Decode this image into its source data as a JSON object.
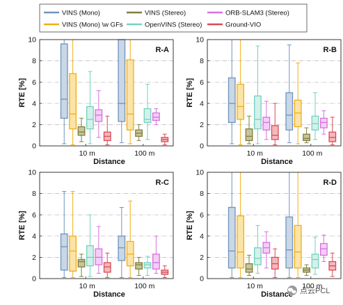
{
  "chart_data": [
    {
      "type": "box",
      "title": "R-A",
      "xlabel": "Distance",
      "ylabel": "RTE [%]",
      "ylim": [
        0,
        10
      ],
      "yticks": [
        "0",
        "2",
        "4",
        "6",
        "8",
        "10"
      ],
      "categories": [
        "10 m",
        "100 m"
      ],
      "grid": "horizontal dashed",
      "series": [
        {
          "name": "VINS (Mono)",
          "boxes": [
            {
              "min": 0.2,
              "q1": 2.6,
              "median": 4.4,
              "q3": 9.6,
              "max": 10.0
            },
            {
              "min": 0.3,
              "q1": 2.3,
              "median": 4.0,
              "q3": 10.0,
              "max": 10.0
            }
          ]
        },
        {
          "name": "VINS (Mono) \\w GFs",
          "boxes": [
            {
              "min": 0.1,
              "q1": 1.6,
              "median": 3.0,
              "q3": 6.8,
              "max": 10.0
            },
            {
              "min": 0.2,
              "q1": 1.5,
              "median": 3.0,
              "q3": 8.1,
              "max": 10.0
            }
          ]
        },
        {
          "name": "VINS (Stereo)",
          "boxes": [
            {
              "min": 0.4,
              "q1": 1.0,
              "median": 1.3,
              "q3": 1.8,
              "max": 2.6
            },
            {
              "min": 0.5,
              "q1": 0.9,
              "median": 1.2,
              "q3": 1.5,
              "max": 2.0
            }
          ]
        },
        {
          "name": "OpenVINS (Stereo)",
          "boxes": [
            {
              "min": 0.2,
              "q1": 1.6,
              "median": 2.5,
              "q3": 3.7,
              "max": 7.0
            },
            {
              "min": 0.6,
              "q1": 2.2,
              "median": 2.5,
              "q3": 3.5,
              "max": 5.8
            }
          ]
        },
        {
          "name": "ORB-SLAM3 (Stereo)",
          "boxes": [
            {
              "min": 0.8,
              "q1": 2.3,
              "median": 2.9,
              "q3": 3.4,
              "max": 5.2
            },
            {
              "min": 2.0,
              "q1": 2.4,
              "median": 2.7,
              "q3": 3.1,
              "max": 3.5
            }
          ]
        },
        {
          "name": "Ground-VIO",
          "boxes": [
            {
              "min": 0.1,
              "q1": 0.5,
              "median": 0.9,
              "q3": 1.3,
              "max": 2.8
            },
            {
              "min": 0.1,
              "q1": 0.4,
              "median": 0.6,
              "q3": 0.8,
              "max": 1.1
            }
          ]
        }
      ]
    },
    {
      "type": "box",
      "title": "R-B",
      "xlabel": "Distance",
      "ylabel": "RTE [%]",
      "ylim": [
        0,
        10
      ],
      "yticks": [
        "0",
        "2",
        "4",
        "6",
        "8",
        "10"
      ],
      "categories": [
        "10 m",
        "100 m"
      ],
      "grid": "horizontal dashed",
      "series": [
        {
          "name": "VINS (Mono)",
          "boxes": [
            {
              "min": 0.2,
              "q1": 2.2,
              "median": 4.0,
              "q3": 6.4,
              "max": 10.0
            },
            {
              "min": 0.3,
              "q1": 1.5,
              "median": 2.9,
              "q3": 5.0,
              "max": 9.5
            }
          ]
        },
        {
          "name": "VINS (Mono) \\w GFs",
          "boxes": [
            {
              "min": 0.1,
              "q1": 2.5,
              "median": 3.7,
              "q3": 5.8,
              "max": 10.0
            },
            {
              "min": 0.2,
              "q1": 1.8,
              "median": 3.1,
              "q3": 4.3,
              "max": 7.8
            }
          ]
        },
        {
          "name": "VINS (Stereo)",
          "boxes": [
            {
              "min": 0.2,
              "q1": 0.5,
              "median": 0.9,
              "q3": 1.6,
              "max": 2.8
            },
            {
              "min": 0.3,
              "q1": 0.5,
              "median": 0.7,
              "q3": 1.1,
              "max": 1.7
            }
          ]
        },
        {
          "name": "OpenVINS (Stereo)",
          "boxes": [
            {
              "min": 0.2,
              "q1": 1.6,
              "median": 2.5,
              "q3": 4.7,
              "max": 9.4
            },
            {
              "min": 0.6,
              "q1": 1.5,
              "median": 2.1,
              "q3": 2.8,
              "max": 5.0
            }
          ]
        },
        {
          "name": "ORB-SLAM3 (Stereo)",
          "boxes": [
            {
              "min": 0.6,
              "q1": 1.5,
              "median": 2.2,
              "q3": 2.7,
              "max": 4.2
            },
            {
              "min": 1.1,
              "q1": 1.7,
              "median": 2.2,
              "q3": 2.6,
              "max": 3.3
            }
          ]
        },
        {
          "name": "Ground-VIO",
          "boxes": [
            {
              "min": 0.1,
              "q1": 0.6,
              "median": 1.0,
              "q3": 1.9,
              "max": 4.0
            },
            {
              "min": 0.1,
              "q1": 0.4,
              "median": 0.8,
              "q3": 1.3,
              "max": 2.7
            }
          ]
        }
      ]
    },
    {
      "type": "box",
      "title": "R-C",
      "xlabel": "Distance",
      "ylabel": "RTE [%]",
      "ylim": [
        0,
        10
      ],
      "yticks": [
        "0",
        "2",
        "4",
        "6",
        "8",
        "10"
      ],
      "categories": [
        "10 m",
        "100 m"
      ],
      "grid": "horizontal dashed",
      "series": [
        {
          "name": "VINS (Mono)",
          "boxes": [
            {
              "min": 0.1,
              "q1": 0.8,
              "median": 3.0,
              "q3": 4.2,
              "max": 8.2
            },
            {
              "min": 0.1,
              "q1": 1.7,
              "median": 2.9,
              "q3": 4.0,
              "max": 6.7
            }
          ]
        },
        {
          "name": "VINS (Mono) \\w GFs",
          "boxes": [
            {
              "min": 0.1,
              "q1": 0.7,
              "median": 2.6,
              "q3": 4.0,
              "max": 8.2
            },
            {
              "min": 0.1,
              "q1": 1.2,
              "median": 2.3,
              "q3": 3.5,
              "max": 7.3
            }
          ]
        },
        {
          "name": "VINS (Stereo)",
          "boxes": [
            {
              "min": 0.2,
              "q1": 1.1,
              "median": 1.6,
              "q3": 1.8,
              "max": 2.3
            },
            {
              "min": 0.3,
              "q1": 0.9,
              "median": 1.3,
              "q3": 1.5,
              "max": 2.0
            }
          ]
        },
        {
          "name": "OpenVINS (Stereo)",
          "boxes": [
            {
              "min": 0.2,
              "q1": 1.2,
              "median": 2.0,
              "q3": 3.1,
              "max": 6.0
            },
            {
              "min": 0.3,
              "q1": 1.0,
              "median": 1.3,
              "q3": 1.5,
              "max": 2.1
            }
          ]
        },
        {
          "name": "ORB-SLAM3 (Stereo)",
          "boxes": [
            {
              "min": 0.5,
              "q1": 1.3,
              "median": 2.0,
              "q3": 2.8,
              "max": 4.9
            },
            {
              "min": 0.5,
              "q1": 0.9,
              "median": 1.5,
              "q3": 2.3,
              "max": 4.0
            }
          ]
        },
        {
          "name": "Ground-VIO",
          "boxes": [
            {
              "min": 0.1,
              "q1": 0.6,
              "median": 1.1,
              "q3": 1.5,
              "max": 2.4
            },
            {
              "min": 0.1,
              "q1": 0.4,
              "median": 0.6,
              "q3": 0.8,
              "max": 1.2
            }
          ]
        }
      ]
    },
    {
      "type": "box",
      "title": "R-D",
      "xlabel": "Distance",
      "ylabel": "RTE [%]",
      "ylim": [
        0,
        10
      ],
      "yticks": [
        "0",
        "2",
        "4",
        "6",
        "8",
        "10"
      ],
      "categories": [
        "10 m",
        "100 m"
      ],
      "grid": "horizontal dashed",
      "series": [
        {
          "name": "VINS (Mono)",
          "boxes": [
            {
              "min": 0.1,
              "q1": 1.0,
              "median": 2.6,
              "q3": 6.7,
              "max": 10.0
            },
            {
              "min": 0.1,
              "q1": 1.0,
              "median": 2.7,
              "q3": 5.8,
              "max": 10.0
            }
          ]
        },
        {
          "name": "VINS (Mono) \\w GFs",
          "boxes": [
            {
              "min": 0.1,
              "q1": 1.0,
              "median": 2.5,
              "q3": 5.9,
              "max": 10.0
            },
            {
              "min": 0.1,
              "q1": 1.0,
              "median": 2.5,
              "q3": 5.0,
              "max": 10.0
            }
          ]
        },
        {
          "name": "VINS (Stereo)",
          "boxes": [
            {
              "min": 0.3,
              "q1": 0.6,
              "median": 0.9,
              "q3": 1.4,
              "max": 2.2
            },
            {
              "min": 0.3,
              "q1": 0.6,
              "median": 0.8,
              "q3": 1.0,
              "max": 1.3
            }
          ]
        },
        {
          "name": "OpenVINS (Stereo)",
          "boxes": [
            {
              "min": 0.5,
              "q1": 1.3,
              "median": 1.9,
              "q3": 2.9,
              "max": 5.0
            },
            {
              "min": 0.4,
              "q1": 1.0,
              "median": 1.8,
              "q3": 2.3,
              "max": 3.9
            }
          ]
        },
        {
          "name": "ORB-SLAM3 (Stereo)",
          "boxes": [
            {
              "min": 1.0,
              "q1": 2.4,
              "median": 2.9,
              "q3": 3.4,
              "max": 4.4
            },
            {
              "min": 1.6,
              "q1": 2.2,
              "median": 2.8,
              "q3": 3.3,
              "max": 4.1
            }
          ]
        },
        {
          "name": "Ground-VIO",
          "boxes": [
            {
              "min": 0.1,
              "q1": 0.9,
              "median": 1.4,
              "q3": 2.0,
              "max": 2.8
            },
            {
              "min": 0.2,
              "q1": 0.8,
              "median": 1.2,
              "q3": 1.6,
              "max": 2.4
            }
          ]
        }
      ]
    }
  ],
  "legend": {
    "placement": "top",
    "items": [
      {
        "label": "VINS (Mono)",
        "color": "#6f93bd"
      },
      {
        "label": "VINS (Stereo)",
        "color": "#7f7d3c"
      },
      {
        "label": "ORB-SLAM3 (Stereo)",
        "color": "#d86fe0"
      },
      {
        "label": "VINS (Mono) \\w GFs",
        "color": "#f2ad14"
      },
      {
        "label": "OpenVINS (Stereo)",
        "color": "#72d2c0"
      },
      {
        "label": "Ground-VIO",
        "color": "#d94a55"
      }
    ]
  },
  "colors": {
    "VINS (Mono)": {
      "stroke": "#6f93bd",
      "fill": "#c9d7e6"
    },
    "VINS (Mono) \\w GFs": {
      "stroke": "#f2ad14",
      "fill": "#fbe4a8"
    },
    "VINS (Stereo)": {
      "stroke": "#7f7d3c",
      "fill": "#c6c59a"
    },
    "OpenVINS (Stereo)": {
      "stroke": "#72d2c0",
      "fill": "#d3f1ea"
    },
    "ORB-SLAM3 (Stereo)": {
      "stroke": "#d86fe0",
      "fill": "#f3cff5"
    },
    "Ground-VIO": {
      "stroke": "#d94a55",
      "fill": "#f4b9bd"
    }
  },
  "watermark": {
    "text": "点云PCL",
    "icon": "wechat-logo-icon"
  }
}
